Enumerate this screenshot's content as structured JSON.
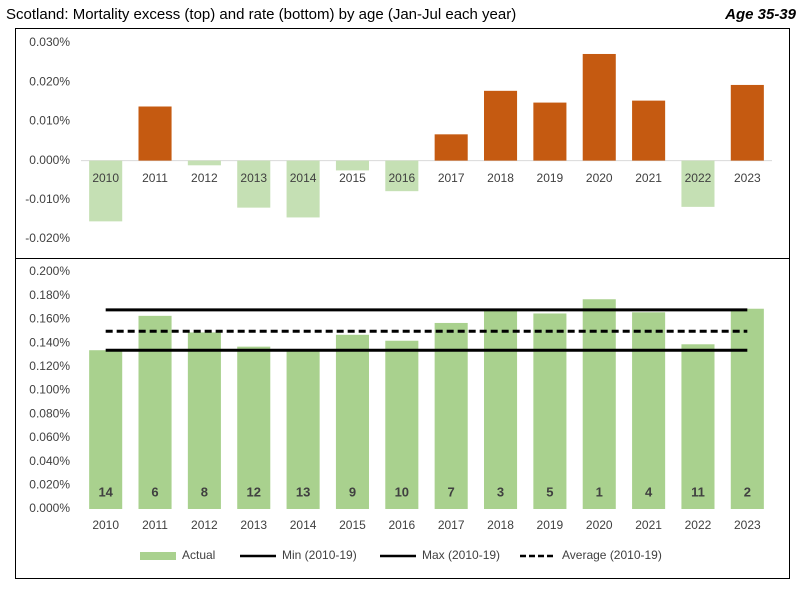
{
  "header": {
    "title": "Scotland: Mortality excess (top) and rate (bottom) by age (Jan-Jul each year)",
    "tag": "Age 35-39"
  },
  "chart_data": [
    {
      "type": "bar",
      "categories": [
        "2010",
        "2011",
        "2012",
        "2013",
        "2014",
        "2015",
        "2016",
        "2017",
        "2018",
        "2019",
        "2020",
        "2021",
        "2022",
        "2023"
      ],
      "values": [
        -0.0155,
        0.0138,
        -0.0012,
        -0.012,
        -0.0145,
        -0.0025,
        -0.0078,
        0.0067,
        0.0178,
        0.0148,
        0.0272,
        0.0153,
        -0.0118,
        0.0193
      ],
      "positive_color": "#c55a11",
      "negative_color": "#c5e0b4",
      "ylim": [
        -0.02,
        0.03
      ],
      "yticks": [
        {
          "value": -0.02,
          "label": "-0.020%"
        },
        {
          "value": -0.01,
          "label": "-0.010%"
        },
        {
          "value": 0,
          "label": "0.000%"
        },
        {
          "value": 0.01,
          "label": "0.010%"
        },
        {
          "value": 0.02,
          "label": "0.020%"
        },
        {
          "value": 0.03,
          "label": "0.030%"
        }
      ]
    },
    {
      "type": "bar_lines",
      "categories": [
        "2010",
        "2011",
        "2012",
        "2013",
        "2014",
        "2015",
        "2016",
        "2017",
        "2018",
        "2019",
        "2020",
        "2021",
        "2022",
        "2023"
      ],
      "series": [
        {
          "name": "Actual",
          "color": "#a9d18e",
          "values": [
            0.134,
            0.163,
            0.149,
            0.137,
            0.134,
            0.147,
            0.142,
            0.157,
            0.168,
            0.165,
            0.177,
            0.166,
            0.139,
            0.169
          ],
          "bar_labels": [
            14,
            6,
            8,
            12,
            13,
            9,
            10,
            7,
            3,
            5,
            1,
            4,
            11,
            2
          ]
        },
        {
          "name": "Min (2010-19)",
          "color": "#000000",
          "dash": false,
          "values": [
            0.134,
            0.134,
            0.134,
            0.134,
            0.134,
            0.134,
            0.134,
            0.134,
            0.134,
            0.134,
            0.134,
            0.134,
            0.134,
            0.134
          ]
        },
        {
          "name": "Max (2010-19)",
          "color": "#000000",
          "dash": false,
          "values": [
            0.168,
            0.168,
            0.168,
            0.168,
            0.168,
            0.168,
            0.168,
            0.168,
            0.168,
            0.168,
            0.168,
            0.168,
            0.168,
            0.168
          ]
        },
        {
          "name": "Average (2010-19)",
          "color": "#000000",
          "dash": true,
          "values": [
            0.15,
            0.15,
            0.15,
            0.15,
            0.15,
            0.15,
            0.15,
            0.15,
            0.15,
            0.15,
            0.15,
            0.15,
            0.15,
            0.15
          ]
        }
      ],
      "ylim": [
        0,
        0.2
      ],
      "yticks": [
        {
          "value": 0,
          "label": "0.000%"
        },
        {
          "value": 0.02,
          "label": "0.020%"
        },
        {
          "value": 0.04,
          "label": "0.040%"
        },
        {
          "value": 0.06,
          "label": "0.060%"
        },
        {
          "value": 0.08,
          "label": "0.080%"
        },
        {
          "value": 0.1,
          "label": "0.100%"
        },
        {
          "value": 0.12,
          "label": "0.120%"
        },
        {
          "value": 0.14,
          "label": "0.140%"
        },
        {
          "value": 0.16,
          "label": "0.160%"
        },
        {
          "value": 0.18,
          "label": "0.180%"
        },
        {
          "value": 0.2,
          "label": "0.200%"
        }
      ]
    }
  ]
}
